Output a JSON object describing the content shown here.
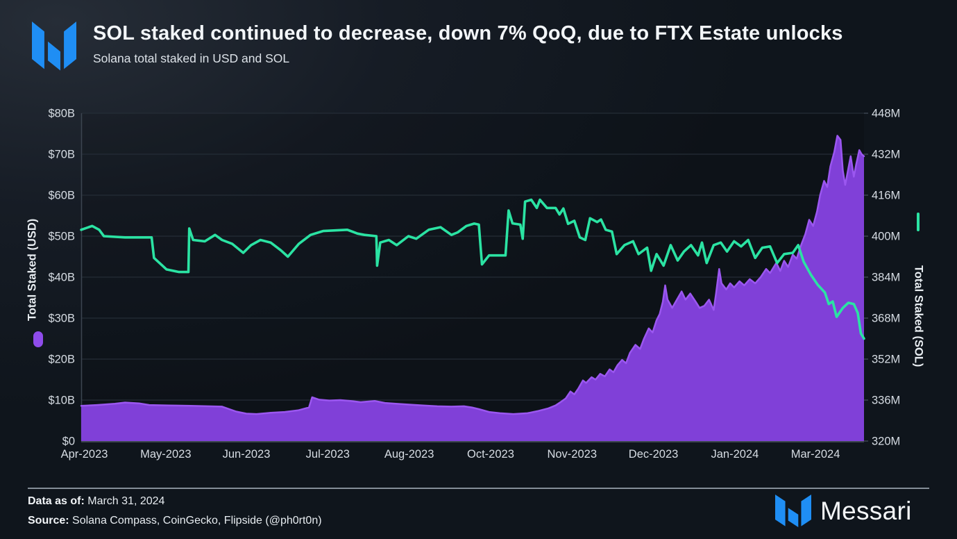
{
  "header": {
    "title": "SOL staked continued to decrease, down 7% QoQ, due to FTX Estate unlocks",
    "subtitle": "Solana total staked in USD and SOL"
  },
  "footer": {
    "data_as_of_label": "Data as of:",
    "data_as_of_value": " March 31, 2024",
    "source_label": "Source:",
    "source_value": " Solana Compass, CoinGecko, Flipside (@ph0rt0n)",
    "brand": "Messari"
  },
  "colors": {
    "brand_blue": "#1f8ef4",
    "purple_fill": "#8040d8",
    "purple_stroke": "#9b57f0",
    "purple_legend": "#8f4ceb",
    "green": "#2be3a3",
    "grid": "#252d37",
    "axis_border": "#3c4550",
    "baseline": "#4d565f",
    "tick_text": "#d6dce3"
  },
  "chart_data": {
    "type": "area",
    "title": "SOL staked continued to decrease, down 7% QoQ, due to FTX Estate unlocks",
    "subtitle": "Solana total staked in USD and SOL",
    "grid": true,
    "x_axis": {
      "labels": [
        "Apr-2023",
        "May-2023",
        "Jun-2023",
        "Jul-2023",
        "Aug-2023",
        "Oct-2023",
        "Nov-2023",
        "Dec-2023",
        "Jan-2024",
        "Mar-2024"
      ],
      "label_positions": [
        0.004,
        0.108,
        0.211,
        0.315,
        0.419,
        0.523,
        0.627,
        0.731,
        0.835,
        0.938
      ]
    },
    "left_axis": {
      "label": "Total Staked (USD)",
      "unit": "USD billions",
      "range": [
        0,
        80
      ],
      "ticks": [
        "$0",
        "$10B",
        "$20B",
        "$30B",
        "$40B",
        "$50B",
        "$60B",
        "$70B",
        "$80B"
      ]
    },
    "right_axis": {
      "label": "Total Staked (SOL)",
      "unit": "SOL millions",
      "range": [
        320,
        448
      ],
      "ticks": [
        "320M",
        "336M",
        "352M",
        "368M",
        "384M",
        "400M",
        "416M",
        "432M",
        "448M"
      ]
    },
    "series": [
      {
        "name": "Total Staked (USD)",
        "type": "area",
        "axis": "left",
        "color": "#8040d8",
        "stroke": "#9b57f0",
        "points": [
          [
            0.0,
            8.6
          ],
          [
            0.02,
            8.8
          ],
          [
            0.043,
            9.1
          ],
          [
            0.056,
            9.4
          ],
          [
            0.074,
            9.2
          ],
          [
            0.087,
            8.8
          ],
          [
            0.113,
            8.7
          ],
          [
            0.14,
            8.6
          ],
          [
            0.162,
            8.5
          ],
          [
            0.18,
            8.4
          ],
          [
            0.198,
            7.2
          ],
          [
            0.211,
            6.7
          ],
          [
            0.224,
            6.6
          ],
          [
            0.242,
            6.9
          ],
          [
            0.26,
            7.1
          ],
          [
            0.277,
            7.5
          ],
          [
            0.291,
            8.2
          ],
          [
            0.295,
            10.7
          ],
          [
            0.304,
            10.1
          ],
          [
            0.317,
            9.9
          ],
          [
            0.331,
            10.0
          ],
          [
            0.344,
            9.8
          ],
          [
            0.357,
            9.5
          ],
          [
            0.375,
            9.8
          ],
          [
            0.388,
            9.3
          ],
          [
            0.402,
            9.1
          ],
          [
            0.419,
            8.9
          ],
          [
            0.437,
            8.7
          ],
          [
            0.455,
            8.5
          ],
          [
            0.473,
            8.4
          ],
          [
            0.489,
            8.5
          ],
          [
            0.499,
            8.2
          ],
          [
            0.508,
            7.8
          ],
          [
            0.521,
            7.1
          ],
          [
            0.535,
            6.8
          ],
          [
            0.552,
            6.6
          ],
          [
            0.57,
            6.8
          ],
          [
            0.583,
            7.3
          ],
          [
            0.597,
            8.0
          ],
          [
            0.606,
            8.7
          ],
          [
            0.613,
            9.6
          ],
          [
            0.619,
            10.4
          ],
          [
            0.625,
            12.1
          ],
          [
            0.63,
            11.4
          ],
          [
            0.635,
            12.8
          ],
          [
            0.641,
            14.8
          ],
          [
            0.645,
            14.2
          ],
          [
            0.652,
            15.6
          ],
          [
            0.657,
            15.0
          ],
          [
            0.663,
            16.4
          ],
          [
            0.669,
            15.8
          ],
          [
            0.675,
            17.5
          ],
          [
            0.68,
            16.8
          ],
          [
            0.685,
            18.5
          ],
          [
            0.691,
            19.8
          ],
          [
            0.696,
            19.0
          ],
          [
            0.701,
            21.5
          ],
          [
            0.708,
            23.5
          ],
          [
            0.714,
            22.5
          ],
          [
            0.719,
            25.0
          ],
          [
            0.725,
            27.5
          ],
          [
            0.73,
            26.5
          ],
          [
            0.735,
            29.5
          ],
          [
            0.739,
            31.0
          ],
          [
            0.743,
            34.0
          ],
          [
            0.746,
            38.0
          ],
          [
            0.749,
            34.5
          ],
          [
            0.755,
            32.5
          ],
          [
            0.761,
            34.5
          ],
          [
            0.767,
            36.5
          ],
          [
            0.772,
            34.5
          ],
          [
            0.778,
            36.0
          ],
          [
            0.785,
            34.0
          ],
          [
            0.79,
            32.5
          ],
          [
            0.796,
            33.0
          ],
          [
            0.802,
            34.5
          ],
          [
            0.808,
            32.0
          ],
          [
            0.811,
            36.0
          ],
          [
            0.815,
            42.0
          ],
          [
            0.818,
            38.5
          ],
          [
            0.824,
            37.0
          ],
          [
            0.829,
            38.5
          ],
          [
            0.834,
            37.5
          ],
          [
            0.841,
            39.0
          ],
          [
            0.847,
            38.0
          ],
          [
            0.854,
            39.5
          ],
          [
            0.861,
            38.5
          ],
          [
            0.868,
            40.0
          ],
          [
            0.875,
            42.0
          ],
          [
            0.88,
            41.0
          ],
          [
            0.888,
            43.5
          ],
          [
            0.893,
            41.5
          ],
          [
            0.898,
            44.0
          ],
          [
            0.903,
            42.5
          ],
          [
            0.909,
            45.5
          ],
          [
            0.914,
            44.5
          ],
          [
            0.919,
            47.5
          ],
          [
            0.925,
            50.5
          ],
          [
            0.93,
            54.0
          ],
          [
            0.935,
            52.5
          ],
          [
            0.94,
            56.0
          ],
          [
            0.944,
            60.0
          ],
          [
            0.949,
            63.5
          ],
          [
            0.953,
            62.0
          ],
          [
            0.957,
            67.0
          ],
          [
            0.962,
            70.5
          ],
          [
            0.966,
            74.5
          ],
          [
            0.97,
            73.5
          ],
          [
            0.973,
            66.0
          ],
          [
            0.976,
            62.5
          ],
          [
            0.98,
            66.5
          ],
          [
            0.983,
            69.5
          ],
          [
            0.987,
            64.5
          ],
          [
            0.99,
            67.5
          ],
          [
            0.994,
            71.0
          ],
          [
            0.997,
            70.0
          ],
          [
            1.0,
            69.5
          ]
        ]
      },
      {
        "name": "Total Staked (SOL)",
        "type": "line",
        "axis": "right",
        "color": "#2be3a3",
        "points": [
          [
            0.0,
            402.5
          ],
          [
            0.014,
            404.0
          ],
          [
            0.023,
            402.5
          ],
          [
            0.029,
            400.0
          ],
          [
            0.056,
            399.5
          ],
          [
            0.09,
            399.5
          ],
          [
            0.093,
            391.5
          ],
          [
            0.109,
            387.0
          ],
          [
            0.125,
            386.0
          ],
          [
            0.137,
            386.0
          ],
          [
            0.138,
            403.0
          ],
          [
            0.143,
            398.5
          ],
          [
            0.158,
            398.0
          ],
          [
            0.171,
            400.5
          ],
          [
            0.18,
            398.5
          ],
          [
            0.193,
            397.0
          ],
          [
            0.207,
            393.5
          ],
          [
            0.217,
            396.5
          ],
          [
            0.229,
            398.5
          ],
          [
            0.242,
            397.5
          ],
          [
            0.255,
            394.5
          ],
          [
            0.264,
            392.0
          ],
          [
            0.278,
            397.0
          ],
          [
            0.293,
            400.5
          ],
          [
            0.309,
            402.0
          ],
          [
            0.34,
            402.5
          ],
          [
            0.353,
            401.0
          ],
          [
            0.362,
            400.5
          ],
          [
            0.377,
            400.0
          ],
          [
            0.378,
            388.5
          ],
          [
            0.382,
            397.5
          ],
          [
            0.393,
            398.5
          ],
          [
            0.403,
            396.5
          ],
          [
            0.418,
            400.0
          ],
          [
            0.428,
            399.0
          ],
          [
            0.444,
            402.5
          ],
          [
            0.459,
            403.5
          ],
          [
            0.473,
            400.5
          ],
          [
            0.481,
            401.5
          ],
          [
            0.492,
            404.0
          ],
          [
            0.502,
            404.9
          ],
          [
            0.508,
            404.5
          ],
          [
            0.512,
            389.0
          ],
          [
            0.521,
            392.5
          ],
          [
            0.542,
            392.5
          ],
          [
            0.546,
            410.0
          ],
          [
            0.551,
            405.0
          ],
          [
            0.561,
            404.5
          ],
          [
            0.564,
            399.0
          ],
          [
            0.567,
            413.5
          ],
          [
            0.575,
            414.2
          ],
          [
            0.582,
            411.0
          ],
          [
            0.586,
            414.2
          ],
          [
            0.595,
            411.0
          ],
          [
            0.606,
            411.0
          ],
          [
            0.611,
            408.5
          ],
          [
            0.616,
            410.8
          ],
          [
            0.622,
            404.8
          ],
          [
            0.63,
            406.0
          ],
          [
            0.637,
            399.5
          ],
          [
            0.644,
            398.5
          ],
          [
            0.65,
            407.0
          ],
          [
            0.659,
            405.5
          ],
          [
            0.664,
            406.5
          ],
          [
            0.67,
            402.5
          ],
          [
            0.678,
            401.8
          ],
          [
            0.684,
            393.0
          ],
          [
            0.694,
            396.5
          ],
          [
            0.705,
            398.0
          ],
          [
            0.712,
            393.0
          ],
          [
            0.723,
            395.5
          ],
          [
            0.728,
            386.5
          ],
          [
            0.735,
            393.0
          ],
          [
            0.744,
            388.5
          ],
          [
            0.753,
            396.5
          ],
          [
            0.762,
            390.5
          ],
          [
            0.77,
            394.0
          ],
          [
            0.779,
            396.5
          ],
          [
            0.788,
            392.5
          ],
          [
            0.793,
            397.5
          ],
          [
            0.799,
            389.5
          ],
          [
            0.808,
            396.5
          ],
          [
            0.817,
            397.5
          ],
          [
            0.825,
            394.0
          ],
          [
            0.834,
            398.0
          ],
          [
            0.843,
            396.0
          ],
          [
            0.852,
            398.5
          ],
          [
            0.861,
            391.5
          ],
          [
            0.87,
            395.5
          ],
          [
            0.88,
            396.0
          ],
          [
            0.889,
            389.5
          ],
          [
            0.898,
            393.0
          ],
          [
            0.909,
            393.5
          ],
          [
            0.916,
            396.5
          ],
          [
            0.923,
            390.0
          ],
          [
            0.932,
            385.0
          ],
          [
            0.941,
            381.0
          ],
          [
            0.95,
            378.0
          ],
          [
            0.955,
            373.5
          ],
          [
            0.96,
            374.5
          ],
          [
            0.965,
            368.5
          ],
          [
            0.973,
            372.0
          ],
          [
            0.98,
            374.0
          ],
          [
            0.987,
            373.5
          ],
          [
            0.992,
            370.0
          ],
          [
            0.996,
            362.0
          ],
          [
            1.0,
            360.0
          ]
        ]
      }
    ]
  }
}
